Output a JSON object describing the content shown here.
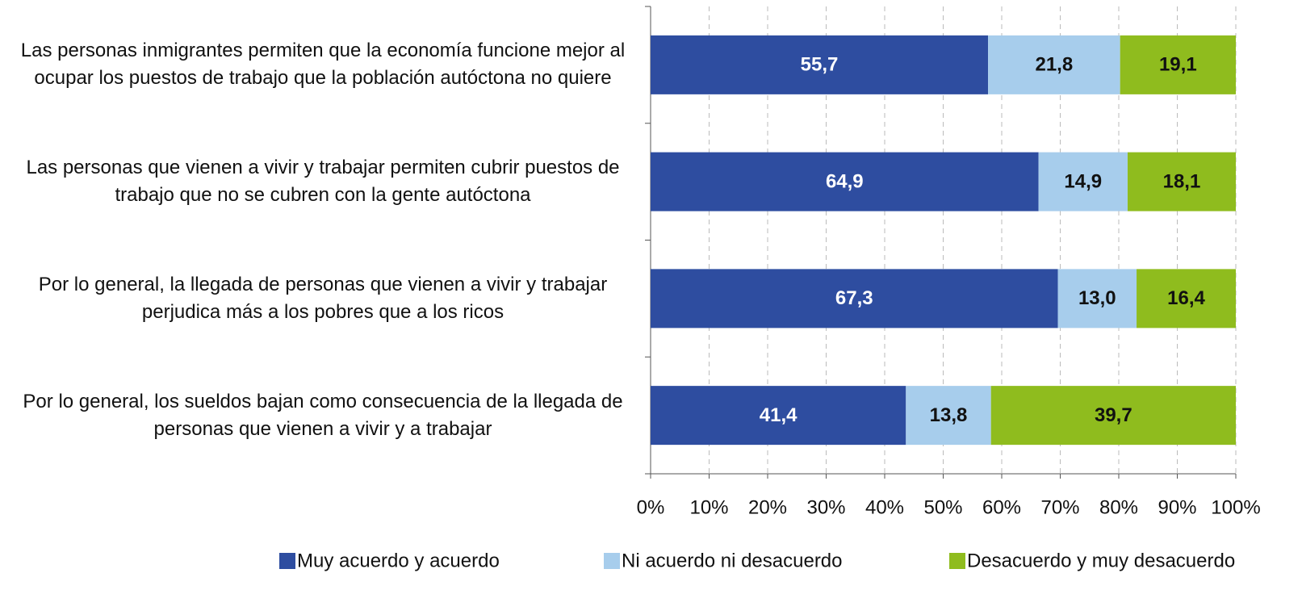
{
  "chart_data": {
    "type": "bar",
    "orientation": "horizontal",
    "stacking": "percent",
    "categories": [
      "Las personas inmigrantes permiten que la economía funcione mejor al ocupar los puestos de trabajo que la población autóctona no quiere",
      "Las personas que vienen a vivir y trabajar permiten cubrir puestos de trabajo que no se cubren con la gente autóctona",
      "Por lo general, la llegada de personas que vienen a vivir y trabajar perjudica más a los pobres que a los ricos",
      "Por lo general, los sueldos bajan como consecuencia de la llegada de personas que vienen a vivir y a trabajar"
    ],
    "series": [
      {
        "name": "Muy acuerdo y acuerdo",
        "color": "#2e4da0",
        "label_color": "#ffffff",
        "values": [
          55.7,
          64.9,
          67.3,
          41.4
        ],
        "value_labels": [
          "55,7",
          "64,9",
          "67,3",
          "41,4"
        ]
      },
      {
        "name": "Ni acuerdo ni desacuerdo",
        "color": "#a7cdec",
        "label_color": "#111111",
        "values": [
          21.8,
          14.9,
          13.0,
          13.8
        ],
        "value_labels": [
          "21,8",
          "14,9",
          "13,0",
          "13,8"
        ]
      },
      {
        "name": "Desacuerdo y muy desacuerdo",
        "color": "#8fbc1e",
        "label_color": "#111111",
        "values": [
          19.1,
          18.1,
          16.4,
          39.7
        ],
        "value_labels": [
          "19,1",
          "18,1",
          "16,4",
          "39,7"
        ]
      }
    ],
    "xlim": [
      0,
      100
    ],
    "xticks": [
      {
        "value": 0,
        "label": "0%"
      },
      {
        "value": 10,
        "label": "10%"
      },
      {
        "value": 20,
        "label": "20%"
      },
      {
        "value": 30,
        "label": "30%"
      },
      {
        "value": 40,
        "label": "40%"
      },
      {
        "value": 50,
        "label": "50%"
      },
      {
        "value": 60,
        "label": "60%"
      },
      {
        "value": 70,
        "label": "70%"
      },
      {
        "value": 80,
        "label": "80%"
      },
      {
        "value": 90,
        "label": "90%"
      },
      {
        "value": 100,
        "label": "100%"
      }
    ],
    "grid": true,
    "legend": "bottom"
  }
}
